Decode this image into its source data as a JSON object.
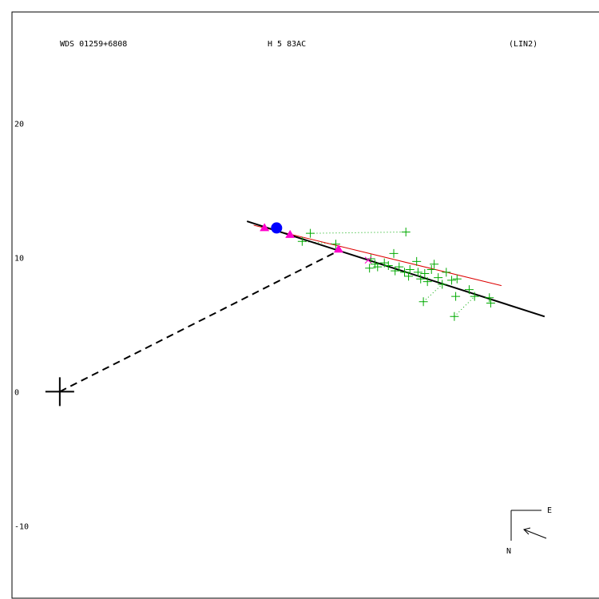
{
  "header": {
    "left": "WDS 01259+6808",
    "center": "H 5  83AC",
    "right": "(LIN2)"
  },
  "compass": {
    "east": "E",
    "north": "N"
  },
  "chart_data": {
    "type": "scatter",
    "title": "",
    "xlabel": "",
    "ylabel": "",
    "xlim": [
      -3.55,
      40.1
    ],
    "ylim": [
      -15.4,
      28.3
    ],
    "y_ticks": [
      {
        "value": 20,
        "label": "20"
      },
      {
        "value": 10,
        "label": "10"
      },
      {
        "value": 0,
        "label": "0"
      },
      {
        "value": -10,
        "label": "-10"
      }
    ],
    "colors": {
      "observations": "#00aa00",
      "orbit": "#000000",
      "linear_fit": "#dd0000",
      "highlight_triangles": "#ff00cc",
      "current_position": "#0000ff",
      "primary": "#000000"
    },
    "primary_star": {
      "x": 0,
      "y": 0
    },
    "orbit_line": {
      "x": [
        13.9,
        36.0
      ],
      "y": [
        12.7,
        5.6
      ]
    },
    "linear_fit": {
      "x": [
        14.4,
        32.8
      ],
      "y": [
        12.4,
        7.9
      ]
    },
    "dashed_line": {
      "x": [
        0,
        20.9
      ],
      "y": [
        0,
        10.6
      ]
    },
    "current_position": {
      "x": 16.1,
      "y": 12.2
    },
    "triangles": [
      {
        "x": 15.2,
        "y": 12.2
      },
      {
        "x": 17.1,
        "y": 11.7
      },
      {
        "x": 20.7,
        "y": 10.6
      }
    ],
    "x_markers": [
      {
        "x": 22.9,
        "y": 9.8
      }
    ],
    "observations": [
      {
        "x": 18.6,
        "y": 11.8
      },
      {
        "x": 18.0,
        "y": 11.2
      },
      {
        "x": 20.5,
        "y": 11.0
      },
      {
        "x": 25.7,
        "y": 11.9
      },
      {
        "x": 23.1,
        "y": 9.9
      },
      {
        "x": 23.4,
        "y": 9.5
      },
      {
        "x": 23.0,
        "y": 9.2
      },
      {
        "x": 23.6,
        "y": 9.3
      },
      {
        "x": 24.1,
        "y": 9.6
      },
      {
        "x": 24.4,
        "y": 9.4
      },
      {
        "x": 24.8,
        "y": 10.3
      },
      {
        "x": 24.9,
        "y": 9.0
      },
      {
        "x": 25.2,
        "y": 9.3
      },
      {
        "x": 25.6,
        "y": 8.9
      },
      {
        "x": 25.9,
        "y": 8.6
      },
      {
        "x": 26.0,
        "y": 9.1
      },
      {
        "x": 26.5,
        "y": 9.7
      },
      {
        "x": 26.6,
        "y": 8.9
      },
      {
        "x": 26.8,
        "y": 8.4
      },
      {
        "x": 27.1,
        "y": 8.8
      },
      {
        "x": 27.3,
        "y": 8.2
      },
      {
        "x": 27.6,
        "y": 9.1
      },
      {
        "x": 27.8,
        "y": 9.5
      },
      {
        "x": 28.1,
        "y": 8.5
      },
      {
        "x": 28.4,
        "y": 8.0
      },
      {
        "x": 28.7,
        "y": 8.9
      },
      {
        "x": 29.1,
        "y": 8.3
      },
      {
        "x": 29.5,
        "y": 8.4
      },
      {
        "x": 27.0,
        "y": 6.7
      },
      {
        "x": 29.4,
        "y": 7.1
      },
      {
        "x": 30.4,
        "y": 7.6
      },
      {
        "x": 30.8,
        "y": 7.1
      },
      {
        "x": 31.9,
        "y": 7.0
      },
      {
        "x": 32.0,
        "y": 6.6
      },
      {
        "x": 29.3,
        "y": 5.6
      }
    ],
    "obs_links": [
      {
        "from": [
          18.6,
          11.8
        ],
        "to": [
          25.7,
          11.9
        ]
      },
      {
        "from": [
          18.0,
          11.2
        ],
        "to": [
          20.5,
          11.0
        ]
      },
      {
        "from": [
          27.0,
          6.7
        ],
        "to": [
          28.4,
          8.0
        ]
      },
      {
        "from": [
          29.3,
          5.6
        ],
        "to": [
          30.8,
          7.1
        ]
      },
      {
        "from": [
          23.4,
          9.5
        ],
        "to": [
          24.1,
          9.6
        ]
      }
    ]
  }
}
